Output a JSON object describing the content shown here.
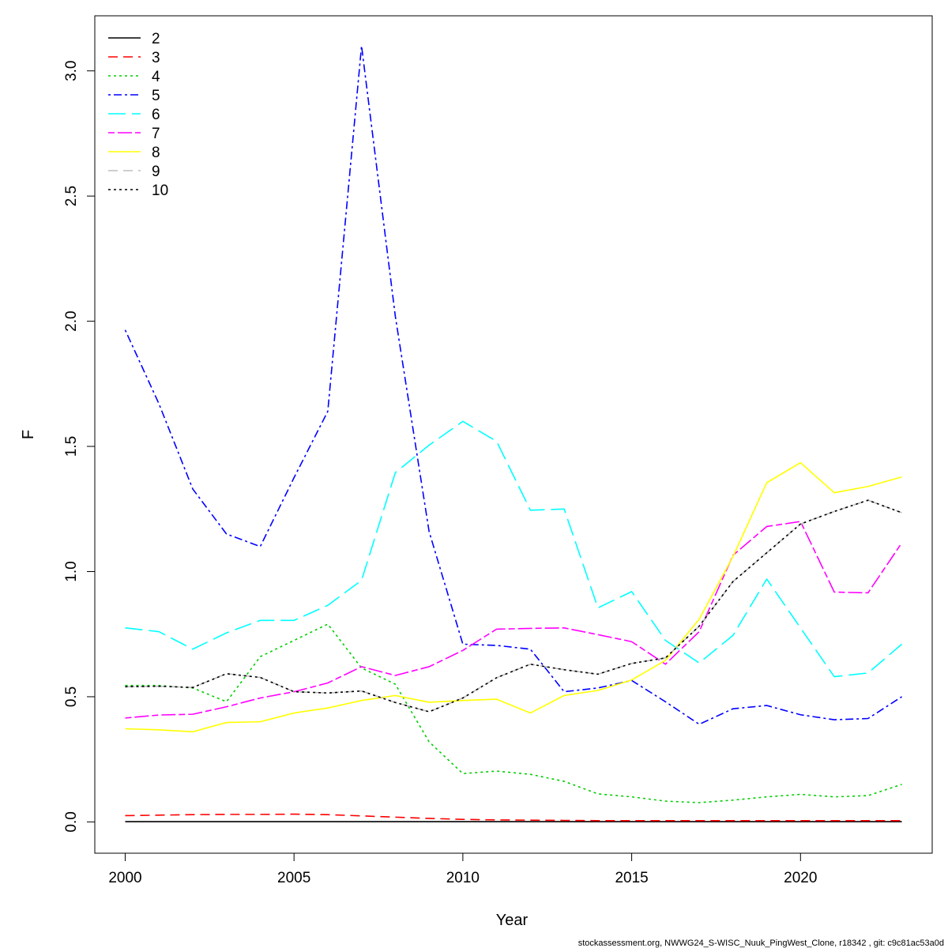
{
  "chart_data": {
    "type": "line",
    "title": "",
    "xlabel": "Year",
    "ylabel": "F",
    "xlim": [
      1999.1,
      2023.9
    ],
    "ylim": [
      -0.125,
      3.22
    ],
    "x_ticks": [
      "2000",
      "2005",
      "2010",
      "2015",
      "2020"
    ],
    "y_ticks": [
      "0.0",
      "0.5",
      "1.0",
      "1.5",
      "2.0",
      "2.5",
      "3.0"
    ],
    "grid": false,
    "legend_position": "top-left",
    "x": [
      2000,
      2001,
      2002,
      2003,
      2004,
      2005,
      2006,
      2007,
      2008,
      2009,
      2010,
      2011,
      2012,
      2013,
      2014,
      2015,
      2016,
      2017,
      2018,
      2019,
      2020,
      2021,
      2022,
      2023
    ],
    "series": [
      {
        "name": "2",
        "color": "#000000",
        "dash": "solid",
        "values": [
          0.001,
          0.001,
          0.001,
          0.001,
          0.001,
          0.001,
          0.001,
          0.001,
          0.001,
          0.001,
          0.001,
          0.001,
          0.001,
          0.001,
          0.001,
          0.001,
          0.001,
          0.001,
          0.001,
          0.001,
          0.001,
          0.001,
          0.001,
          0.001
        ]
      },
      {
        "name": "3",
        "color": "#ff0000",
        "dash": "dashed",
        "values": [
          0.025,
          0.027,
          0.029,
          0.03,
          0.03,
          0.031,
          0.029,
          0.024,
          0.019,
          0.014,
          0.01,
          0.008,
          0.007,
          0.006,
          0.005,
          0.005,
          0.005,
          0.005,
          0.005,
          0.005,
          0.005,
          0.005,
          0.005,
          0.005
        ]
      },
      {
        "name": "4",
        "color": "#00cd00",
        "dash": "dotted",
        "values": [
          0.545,
          0.545,
          0.535,
          0.48,
          0.66,
          0.725,
          0.79,
          0.615,
          0.55,
          0.32,
          0.193,
          0.203,
          0.19,
          0.162,
          0.112,
          0.1,
          0.083,
          0.077,
          0.087,
          0.1,
          0.11,
          0.1,
          0.105,
          0.15
        ]
      },
      {
        "name": "5",
        "color": "#0000ff",
        "dash": "dotdash",
        "values": [
          1.965,
          1.67,
          1.33,
          1.15,
          1.1,
          1.375,
          1.64,
          3.1,
          2.02,
          1.16,
          0.71,
          0.705,
          0.69,
          0.52,
          0.535,
          0.565,
          0.48,
          0.39,
          0.452,
          0.465,
          0.428,
          0.408,
          0.413,
          0.5
        ]
      },
      {
        "name": "6",
        "color": "#00ffff",
        "dash": "longdash",
        "values": [
          0.775,
          0.76,
          0.69,
          0.755,
          0.805,
          0.805,
          0.865,
          0.965,
          1.395,
          1.505,
          1.6,
          1.52,
          1.245,
          1.25,
          0.855,
          0.92,
          0.725,
          0.635,
          0.745,
          0.97,
          0.775,
          0.58,
          0.595,
          0.71
        ]
      },
      {
        "name": "7",
        "color": "#ff00ff",
        "dash": "twodash",
        "values": [
          0.415,
          0.427,
          0.43,
          0.46,
          0.495,
          0.52,
          0.555,
          0.62,
          0.585,
          0.62,
          0.685,
          0.77,
          0.773,
          0.775,
          0.748,
          0.72,
          0.63,
          0.76,
          1.065,
          1.18,
          1.2,
          0.918,
          0.915,
          1.115
        ]
      },
      {
        "name": "8",
        "color": "#ffff00",
        "dash": "solid",
        "values": [
          0.372,
          0.368,
          0.36,
          0.397,
          0.4,
          0.435,
          0.455,
          0.485,
          0.505,
          0.478,
          0.485,
          0.49,
          0.435,
          0.505,
          0.525,
          0.567,
          0.645,
          0.81,
          1.06,
          1.355,
          1.435,
          1.315,
          1.34,
          1.378
        ]
      },
      {
        "name": "9",
        "color": "#bebebe",
        "dash": "dashed",
        "values": [
          0.54,
          0.542,
          0.537,
          0.592,
          0.577,
          0.52,
          0.515,
          0.523,
          0.477,
          0.44,
          0.495,
          0.576,
          0.63,
          0.608,
          0.59,
          0.633,
          0.655,
          0.782,
          0.96,
          1.075,
          1.19,
          1.24,
          1.285,
          1.235
        ]
      },
      {
        "name": "10",
        "color": "#000000",
        "dash": "dotted",
        "values": [
          0.54,
          0.542,
          0.537,
          0.592,
          0.577,
          0.52,
          0.515,
          0.523,
          0.477,
          0.44,
          0.495,
          0.576,
          0.63,
          0.608,
          0.59,
          0.633,
          0.655,
          0.782,
          0.96,
          1.075,
          1.19,
          1.24,
          1.285,
          1.235
        ]
      }
    ]
  },
  "footer_text": "stockassessment.org, NWWG24_S-WISC_Nuuk_PingWest_Clone, r18342 , git: c9c81ac53a0d"
}
